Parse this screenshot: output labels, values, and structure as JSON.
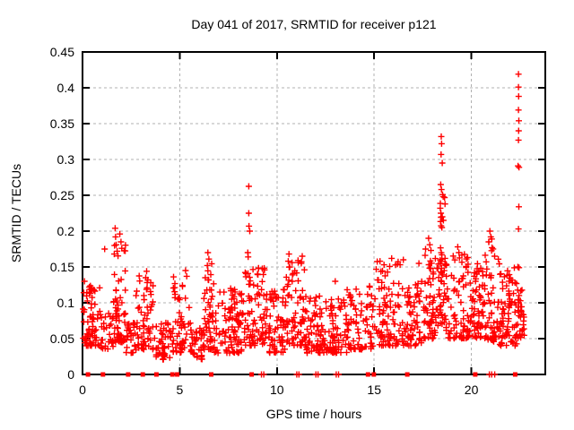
{
  "chart_data": {
    "type": "scatter",
    "title": "Day 041 of 2017, SRMTID for receiver p121",
    "xlabel": "GPS time / hours",
    "ylabel": "SRMTID / TECUs",
    "xlim": [
      0,
      23.8
    ],
    "ylim": [
      0,
      0.45
    ],
    "xticks": [
      0,
      5,
      10,
      15,
      20
    ],
    "xtick_labels": [
      "0",
      "5",
      "10",
      "15",
      "20"
    ],
    "yticks": [
      0,
      0.05,
      0.1,
      0.15,
      0.2,
      0.25,
      0.3,
      0.35,
      0.4,
      0.45
    ],
    "ytick_labels": [
      "0",
      "0.05",
      "0.1",
      "0.15",
      "0.2",
      "0.25",
      "0.3",
      "0.35",
      "0.4",
      "0.45"
    ],
    "grid": true,
    "legend": false,
    "marker": "plus",
    "marker_color": "#ff0000",
    "grid_color": "#b0b0b0",
    "frame_color": "#000000",
    "highlight_points": [
      [
        0.1,
        0.13
      ],
      [
        0.35,
        0.122
      ],
      [
        1.14,
        0.175
      ],
      [
        1.68,
        0.204
      ],
      [
        1.7,
        0.192
      ],
      [
        1.73,
        0.181
      ],
      [
        1.78,
        0.172
      ],
      [
        1.92,
        0.196
      ],
      [
        1.98,
        0.185
      ],
      [
        2.02,
        0.176
      ],
      [
        3.25,
        0.135
      ],
      [
        3.3,
        0.144
      ],
      [
        5.3,
        0.145
      ],
      [
        5.36,
        0.137
      ],
      [
        6.42,
        0.152
      ],
      [
        6.45,
        0.17
      ],
      [
        6.5,
        0.161
      ],
      [
        8.5,
        0.17
      ],
      [
        8.52,
        0.164
      ],
      [
        8.55,
        0.2625
      ],
      [
        8.55,
        0.225
      ],
      [
        8.56,
        0.207
      ],
      [
        8.6,
        0.2
      ],
      [
        9.0,
        0.14
      ],
      [
        9.05,
        0.148
      ],
      [
        10.58,
        0.158
      ],
      [
        10.62,
        0.168
      ],
      [
        10.66,
        0.15
      ],
      [
        11.25,
        0.155
      ],
      [
        11.3,
        0.165
      ],
      [
        13.0,
        0.13
      ],
      [
        15.3,
        0.158
      ],
      [
        15.9,
        0.162
      ],
      [
        16.2,
        0.154
      ],
      [
        16.5,
        0.16
      ],
      [
        17.3,
        0.155
      ],
      [
        17.8,
        0.19
      ],
      [
        17.86,
        0.181
      ],
      [
        17.92,
        0.173
      ],
      [
        18.4,
        0.232
      ],
      [
        18.42,
        0.265
      ],
      [
        18.43,
        0.225
      ],
      [
        18.44,
        0.307
      ],
      [
        18.45,
        0.332
      ],
      [
        18.46,
        0.258
      ],
      [
        18.47,
        0.322
      ],
      [
        18.48,
        0.205
      ],
      [
        18.5,
        0.295
      ],
      [
        18.5,
        0.22
      ],
      [
        18.52,
        0.251
      ],
      [
        18.55,
        0.248
      ],
      [
        18.56,
        0.215
      ],
      [
        19.3,
        0.178
      ],
      [
        19.36,
        0.17
      ],
      [
        20.9,
        0.185
      ],
      [
        20.95,
        0.2
      ],
      [
        21.0,
        0.192
      ],
      [
        21.06,
        0.177
      ],
      [
        22.39,
        0.15
      ],
      [
        22.4,
        0.291
      ],
      [
        22.42,
        0.419
      ],
      [
        22.42,
        0.401
      ],
      [
        22.42,
        0.369
      ],
      [
        22.42,
        0.327
      ],
      [
        22.42,
        0.203
      ],
      [
        22.42,
        0.104
      ],
      [
        22.43,
        0.388
      ],
      [
        22.43,
        0.34
      ],
      [
        22.43,
        0.089
      ],
      [
        22.44,
        0.354
      ],
      [
        22.44,
        0.234
      ],
      [
        22.44,
        0.1
      ],
      [
        22.45,
        0.289
      ],
      [
        22.45,
        0.149
      ]
    ],
    "density_clusters": [
      [
        0.02,
        0.9,
        0.04,
        0.125,
        70,
        1.5
      ],
      [
        0.9,
        1.6,
        0.035,
        0.09,
        28,
        1.3
      ],
      [
        1.6,
        2.25,
        0.045,
        0.205,
        60,
        1.7
      ],
      [
        2.25,
        2.75,
        0.03,
        0.075,
        26,
        1.3
      ],
      [
        2.75,
        3.65,
        0.035,
        0.14,
        58,
        1.7
      ],
      [
        3.7,
        4.55,
        0.02,
        0.075,
        45,
        1.3
      ],
      [
        4.6,
        5.55,
        0.03,
        0.14,
        56,
        1.7
      ],
      [
        5.55,
        6.2,
        0.02,
        0.065,
        40,
        1.2
      ],
      [
        6.2,
        6.75,
        0.035,
        0.155,
        48,
        1.7
      ],
      [
        6.75,
        8.3,
        0.03,
        0.12,
        100,
        1.6
      ],
      [
        8.3,
        9.6,
        0.04,
        0.15,
        85,
        1.7
      ],
      [
        9.6,
        10.45,
        0.03,
        0.12,
        60,
        1.5
      ],
      [
        10.45,
        11.5,
        0.04,
        0.16,
        72,
        1.7
      ],
      [
        11.5,
        13.6,
        0.03,
        0.11,
        135,
        1.6
      ],
      [
        13.6,
        14.95,
        0.035,
        0.125,
        78,
        1.6
      ],
      [
        15.0,
        16.35,
        0.04,
        0.16,
        88,
        1.7
      ],
      [
        16.4,
        17.45,
        0.04,
        0.13,
        66,
        1.6
      ],
      [
        17.5,
        18.3,
        0.05,
        0.18,
        58,
        1.5
      ],
      [
        18.3,
        18.65,
        0.07,
        0.25,
        42,
        1.4
      ],
      [
        18.65,
        19.95,
        0.05,
        0.17,
        88,
        1.6
      ],
      [
        19.95,
        20.7,
        0.05,
        0.155,
        62,
        1.6
      ],
      [
        20.7,
        21.45,
        0.045,
        0.19,
        58,
        1.5
      ],
      [
        21.45,
        22.35,
        0.04,
        0.15,
        72,
        1.6
      ],
      [
        22.35,
        22.72,
        0.05,
        0.12,
        30,
        1.4
      ]
    ],
    "zero_line_squares": [
      0.28,
      1.05,
      2.35,
      3.1,
      3.8,
      4.62,
      4.87,
      6.62,
      8.7,
      14.68,
      14.98,
      16.7,
      20.2,
      22.25
    ],
    "zero_line_plusses": [
      9.2,
      9.32,
      11.02,
      11.13,
      12.0,
      12.11,
      13.05,
      13.17,
      20.92,
      21.04,
      21.2
    ]
  }
}
